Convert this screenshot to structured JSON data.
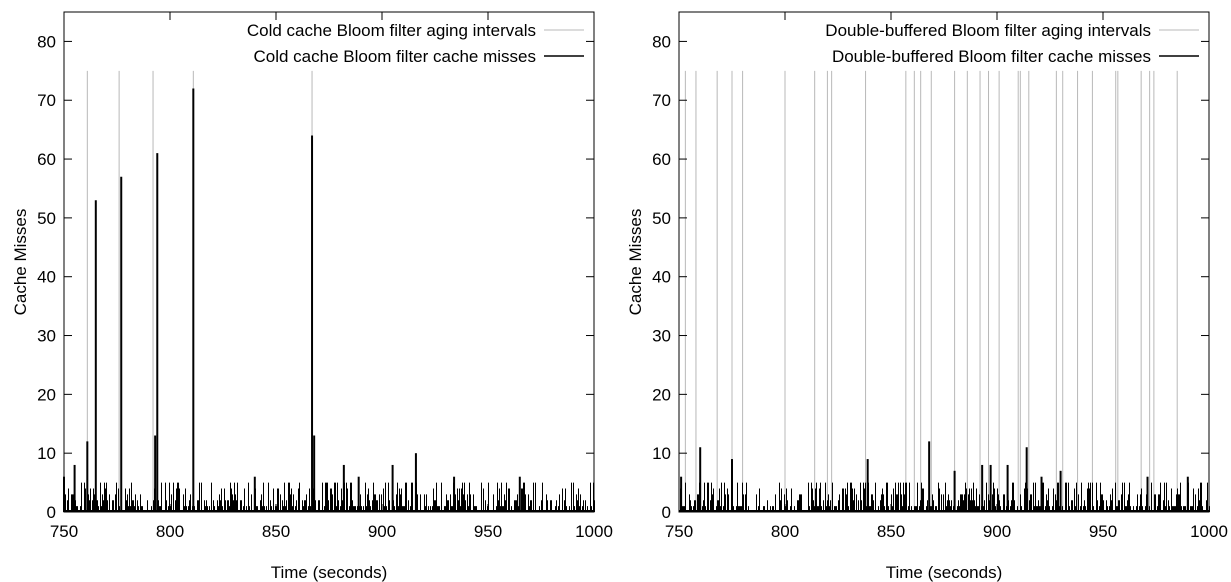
{
  "colors": {
    "aging": "#b8b8b8",
    "misses": "#000000",
    "axis": "#000000"
  },
  "chart_data": [
    {
      "type": "line",
      "title": "",
      "xlabel": "Time (seconds)",
      "ylabel": "Cache Misses",
      "xlim": [
        750,
        1000
      ],
      "ylim": [
        0,
        85
      ],
      "xticks": [
        750,
        800,
        850,
        900,
        950,
        1000
      ],
      "yticks": [
        0,
        10,
        20,
        30,
        40,
        50,
        60,
        70,
        80
      ],
      "grid": false,
      "legend_position": "top-right",
      "series": [
        {
          "name": "Cold cache Bloom filter aging intervals",
          "kind": "impulse",
          "color": "#b8b8b8",
          "x": [
            761,
            776,
            792,
            811,
            867
          ],
          "y": [
            75,
            75,
            75,
            75,
            75
          ]
        },
        {
          "name": "Cold cache Bloom filter cache misses",
          "kind": "impulse",
          "color": "#000000",
          "peaks": [
            {
              "x": 761,
              "y": 12
            },
            {
              "x": 765,
              "y": 53
            },
            {
              "x": 777,
              "y": 57
            },
            {
              "x": 793,
              "y": 13
            },
            {
              "x": 794,
              "y": 61
            },
            {
              "x": 811,
              "y": 72
            },
            {
              "x": 867,
              "y": 64
            },
            {
              "x": 868,
              "y": 13
            },
            {
              "x": 840,
              "y": 6
            },
            {
              "x": 882,
              "y": 8
            },
            {
              "x": 905,
              "y": 8
            },
            {
              "x": 916,
              "y": 10
            },
            {
              "x": 750,
              "y": 6
            },
            {
              "x": 755,
              "y": 8
            },
            {
              "x": 889,
              "y": 6
            },
            {
              "x": 934,
              "y": 6
            },
            {
              "x": 965,
              "y": 6
            }
          ],
          "baseline_range": [
            0,
            5
          ]
        }
      ]
    },
    {
      "type": "line",
      "title": "",
      "xlabel": "Time (seconds)",
      "ylabel": "Cache Misses",
      "xlim": [
        750,
        1000
      ],
      "ylim": [
        0,
        85
      ],
      "xticks": [
        750,
        800,
        850,
        900,
        950,
        1000
      ],
      "yticks": [
        0,
        10,
        20,
        30,
        40,
        50,
        60,
        70,
        80
      ],
      "grid": false,
      "legend_position": "top-right",
      "series": [
        {
          "name": "Double-buffered Bloom filter aging intervals",
          "kind": "impulse",
          "color": "#b8b8b8",
          "x": [
            753,
            758,
            768,
            775,
            780,
            800,
            814,
            820,
            822,
            838,
            857,
            861,
            864,
            869,
            880,
            886,
            892,
            896,
            901,
            910,
            911,
            915,
            928,
            931,
            938,
            945,
            956,
            957,
            968,
            972,
            974,
            985
          ],
          "y": [
            75,
            75,
            75,
            75,
            75,
            75,
            75,
            75,
            75,
            75,
            75,
            75,
            75,
            75,
            75,
            75,
            75,
            75,
            75,
            75,
            75,
            75,
            75,
            75,
            75,
            75,
            75,
            75,
            75,
            75,
            75,
            75
          ]
        },
        {
          "name": "Double-buffered Bloom filter cache misses",
          "kind": "impulse",
          "color": "#000000",
          "peaks": [
            {
              "x": 760,
              "y": 11
            },
            {
              "x": 775,
              "y": 9
            },
            {
              "x": 839,
              "y": 9
            },
            {
              "x": 868,
              "y": 12
            },
            {
              "x": 914,
              "y": 11
            },
            {
              "x": 893,
              "y": 8
            },
            {
              "x": 897,
              "y": 8
            },
            {
              "x": 905,
              "y": 8
            },
            {
              "x": 930,
              "y": 7
            },
            {
              "x": 921,
              "y": 6
            },
            {
              "x": 880,
              "y": 7
            },
            {
              "x": 971,
              "y": 6
            },
            {
              "x": 990,
              "y": 6
            },
            {
              "x": 751,
              "y": 6
            }
          ],
          "baseline_range": [
            0,
            5
          ]
        }
      ]
    }
  ]
}
